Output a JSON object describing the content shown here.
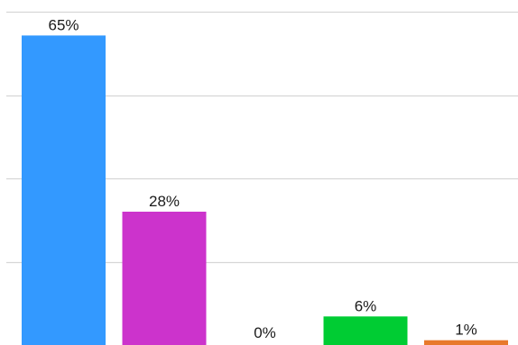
{
  "chart_data": {
    "type": "bar",
    "categories": [
      "",
      "",
      "",
      "",
      ""
    ],
    "values": [
      65,
      28,
      0,
      6,
      1
    ],
    "labels": [
      "65%",
      "28%",
      "0%",
      "6%",
      "1%"
    ],
    "colors": [
      "#3399ff",
      "#cc33cc",
      "#999999",
      "#00cc33",
      "#e8792b"
    ],
    "ylim": [
      0,
      70
    ],
    "grid": true,
    "grid_values": [
      70,
      52.5,
      35,
      17.5
    ],
    "title": "",
    "xlabel": "",
    "ylabel": ""
  }
}
